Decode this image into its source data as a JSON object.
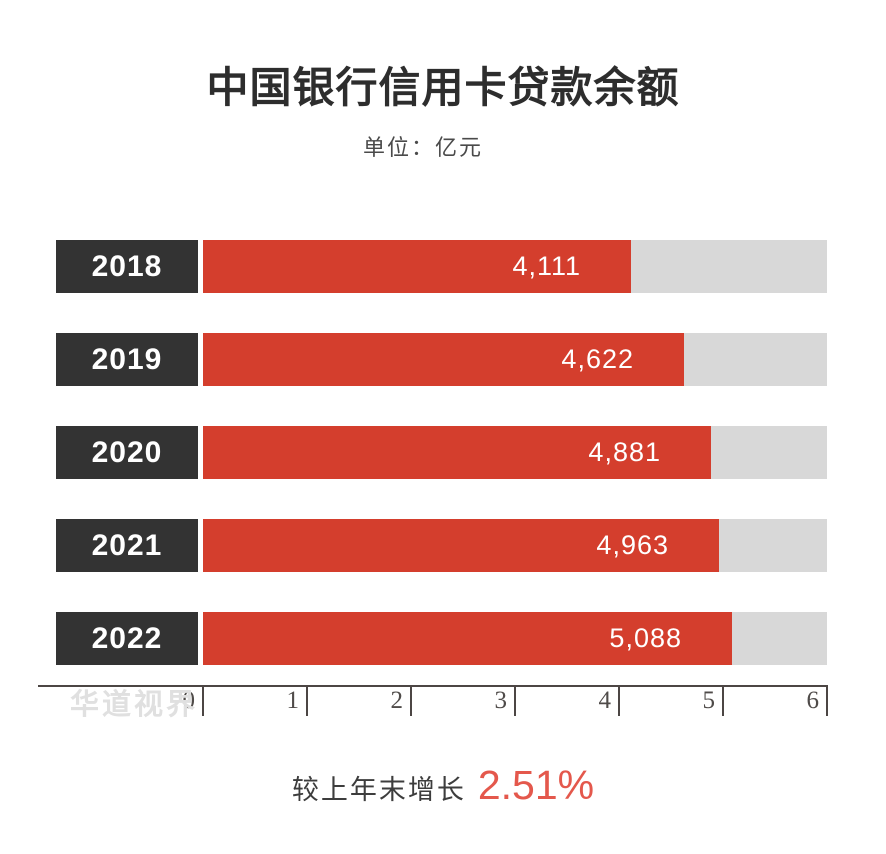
{
  "page": {
    "title": "中国银行信用卡贷款余额",
    "unit_label": "单位：亿元",
    "watermark": "华道视界",
    "footer": {
      "label": "较上年末增长",
      "value": "2.51%"
    }
  },
  "chart_data": {
    "type": "bar",
    "orientation": "horizontal",
    "title": "中国银行信用卡贷款余额",
    "unit": "亿元",
    "categories": [
      "2018",
      "2019",
      "2020",
      "2021",
      "2022"
    ],
    "values": [
      4111,
      4622,
      4881,
      4963,
      5088
    ],
    "value_labels": [
      "4,111",
      "4,622",
      "4,881",
      "4,963",
      "5,088"
    ],
    "xlim": [
      0,
      6
    ],
    "x_ticks": [
      "0",
      "1",
      "2",
      "3",
      "4",
      "5",
      "6"
    ],
    "value_per_tick": 1000,
    "grid": false,
    "legend": "none",
    "annotations": {
      "growth_label": "较上年末增长",
      "growth_value": "2.51%"
    },
    "colors": {
      "bar": "#d43e2d",
      "track": "#d8d8d8",
      "year_box": "#333333",
      "title": "#2d2d2d",
      "subtitle": "#4a4a4a",
      "axis": "#4c4644",
      "tick_label": "#4f4b49",
      "watermark": "#e0e0e0",
      "footer_text": "#3d3d3d",
      "percent": "#e4584c"
    }
  }
}
